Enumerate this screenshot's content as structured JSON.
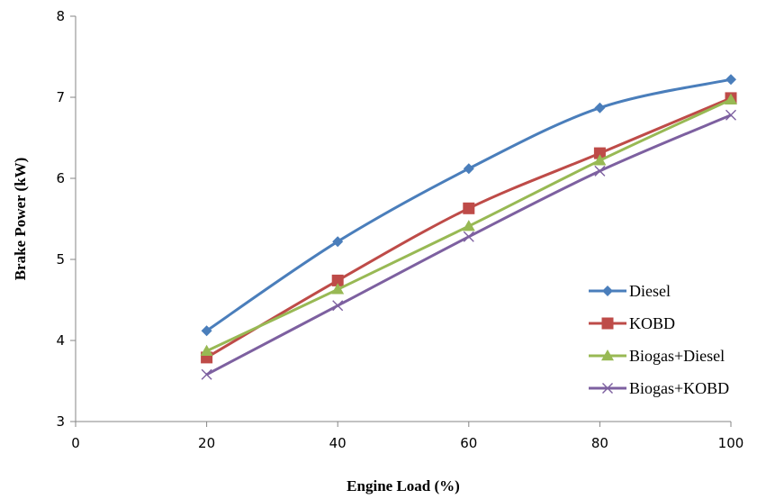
{
  "chart_data": {
    "type": "line",
    "xlabel": "Engine Load (%)",
    "ylabel": "Brake Power (kW)",
    "xlim": [
      0,
      100
    ],
    "ylim": [
      3,
      8
    ],
    "x_ticks": [
      0,
      20,
      40,
      60,
      80,
      100
    ],
    "y_ticks": [
      3,
      4,
      5,
      6,
      7,
      8
    ],
    "grid": false,
    "legend_position": "right",
    "x": [
      20,
      40,
      60,
      80,
      100
    ],
    "series": [
      {
        "name": "Diesel",
        "values": [
          4.12,
          5.22,
          6.12,
          6.87,
          7.22
        ],
        "color": "#4a7ebb",
        "marker": "diamond"
      },
      {
        "name": "KOBD",
        "values": [
          3.79,
          4.74,
          5.63,
          6.31,
          6.99
        ],
        "color": "#be4b48",
        "marker": "square"
      },
      {
        "name": "Biogas+Diesel",
        "values": [
          3.87,
          4.63,
          5.41,
          6.22,
          6.97
        ],
        "color": "#98b954",
        "marker": "triangle"
      },
      {
        "name": "Biogas+KOBD",
        "values": [
          3.58,
          4.43,
          5.28,
          6.09,
          6.78
        ],
        "color": "#7d60a0",
        "marker": "x"
      }
    ]
  }
}
